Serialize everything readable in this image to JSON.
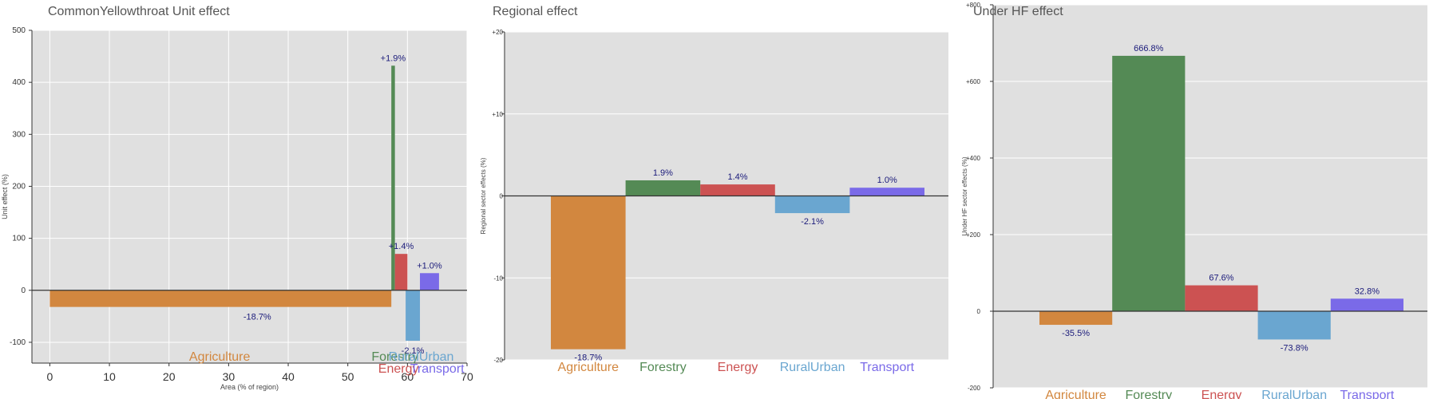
{
  "colors": {
    "Agriculture": "#d2873f",
    "Forestry": "#548a55",
    "Energy": "#cc5252",
    "RuralUrban": "#6aa6d0",
    "Transport": "#7a6ae8",
    "panel_bg": "#e0e0e0",
    "grid": "#ffffff",
    "label": "#1a1a7a"
  },
  "chart_data": [
    {
      "type": "bar",
      "title": "CommonYellowthroat Unit effect",
      "xlabel": "Area (% of region)",
      "ylabel": "Unit effect (%)",
      "xlim": [
        -3,
        70
      ],
      "ylim": [
        -140,
        500
      ],
      "xticks": [
        "0",
        "10",
        "20",
        "30",
        "40",
        "50",
        "60",
        "70"
      ],
      "yticks": [
        "-100",
        "0",
        "100",
        "200",
        "300",
        "400",
        "500"
      ],
      "grid": true,
      "bars": [
        {
          "category": "Agriculture",
          "x_start": 0,
          "x_end": 57.3,
          "value": -32,
          "label": "-18.7%"
        },
        {
          "category": "Forestry",
          "x_start": 57.3,
          "x_end": 57.9,
          "value": 432,
          "label": "+1.9%"
        },
        {
          "category": "Energy",
          "x_start": 57.9,
          "x_end": 60.0,
          "value": 70,
          "label": "+1.4%"
        },
        {
          "category": "RuralUrban",
          "x_start": 59.7,
          "x_end": 62.1,
          "value": -97,
          "label": "-2.1%"
        },
        {
          "category": "Transport",
          "x_start": 62.1,
          "x_end": 65.3,
          "value": 33,
          "label": "+1.0%"
        }
      ]
    },
    {
      "type": "bar",
      "title": "Regional effect",
      "xlabel": "",
      "ylabel": "Regional sector effects (%)",
      "ylim": [
        -20,
        20
      ],
      "yticks": [
        "+20",
        "+10",
        "0",
        "-10",
        "-20"
      ],
      "grid": true,
      "categories": [
        "Agriculture",
        "Forestry",
        "Energy",
        "RuralUrban",
        "Transport"
      ],
      "values": [
        -18.7,
        1.9,
        1.4,
        -2.1,
        1.0
      ],
      "labels": [
        "-18.7%",
        "1.9%",
        "1.4%",
        "-2.1%",
        "1.0%"
      ]
    },
    {
      "type": "bar",
      "title": "Under HF effect",
      "xlabel": "",
      "ylabel": "Under HF sector effects (%)",
      "ylim": [
        -200,
        800
      ],
      "yticks": [
        "+800",
        "+600",
        "+400",
        "+200",
        "0",
        "-200"
      ],
      "grid": true,
      "categories": [
        "Agriculture",
        "Forestry",
        "Energy",
        "RuralUrban",
        "Transport"
      ],
      "values": [
        -35.5,
        666.8,
        67.6,
        -73.8,
        32.8
      ],
      "labels": [
        "-35.5%",
        "666.8%",
        "67.6%",
        "-73.8%",
        "32.8%"
      ]
    }
  ]
}
